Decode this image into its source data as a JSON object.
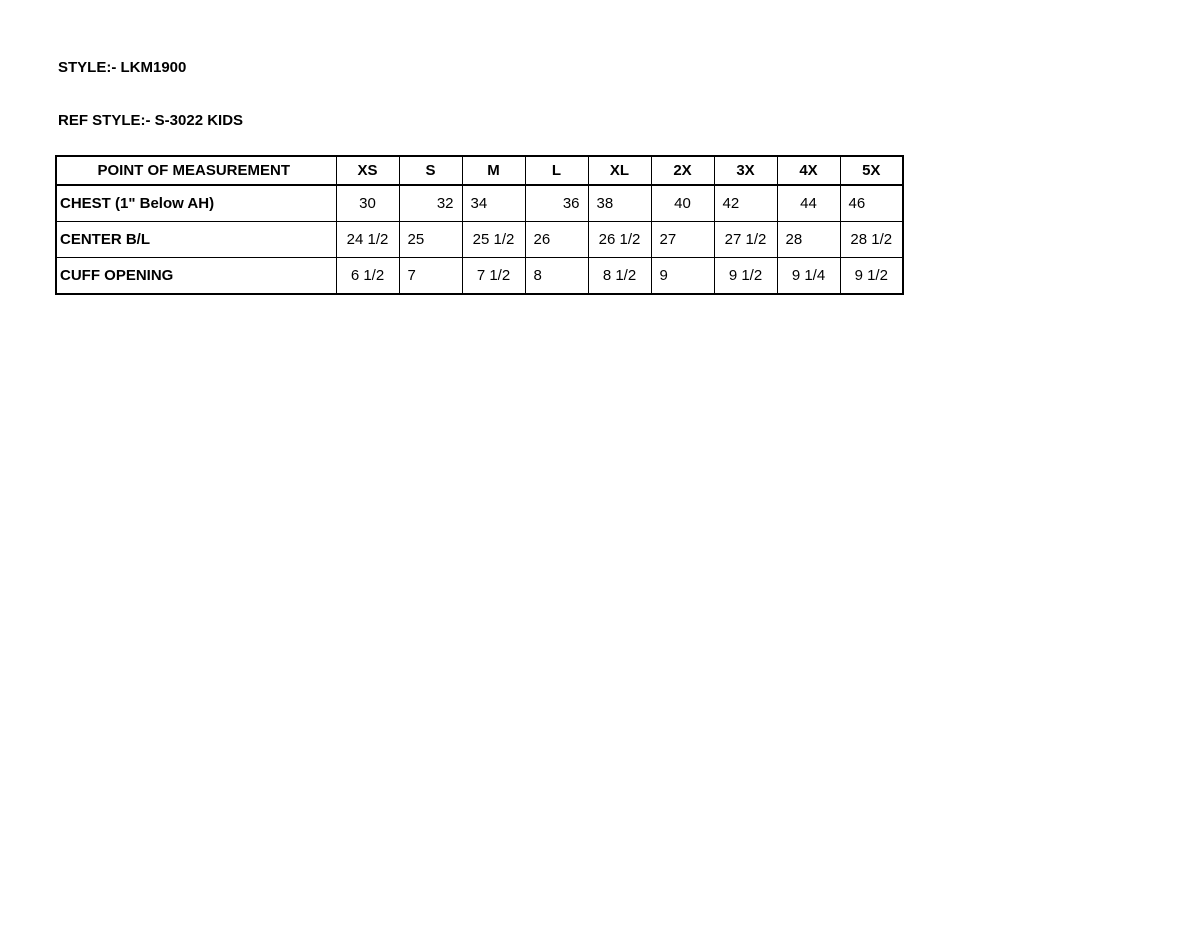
{
  "style_line": "STYLE:- LKM1900",
  "ref_style_line": "REF STYLE:- S-3022 KIDS",
  "table": {
    "header": [
      "POINT OF MEASUREMENT",
      "XS",
      "S",
      "M",
      "L",
      "XL",
      "2X",
      "3X",
      "4X",
      "5X"
    ],
    "rows": [
      [
        "CHEST (1\" Below AH)",
        "30",
        "32",
        "34",
        "36",
        "38",
        "40",
        "42",
        "44",
        "46"
      ],
      [
        "CENTER B/L",
        "24 1/2",
        "25",
        "25 1/2",
        "26",
        "26 1/2",
        "27",
        "27 1/2",
        "28",
        "28 1/2"
      ],
      [
        "CUFF OPENING",
        "6 1/2",
        "7",
        "7 1/2",
        "8",
        "8 1/2",
        "9",
        "9 1/2",
        "9 1/4",
        "9 1/2"
      ]
    ]
  }
}
